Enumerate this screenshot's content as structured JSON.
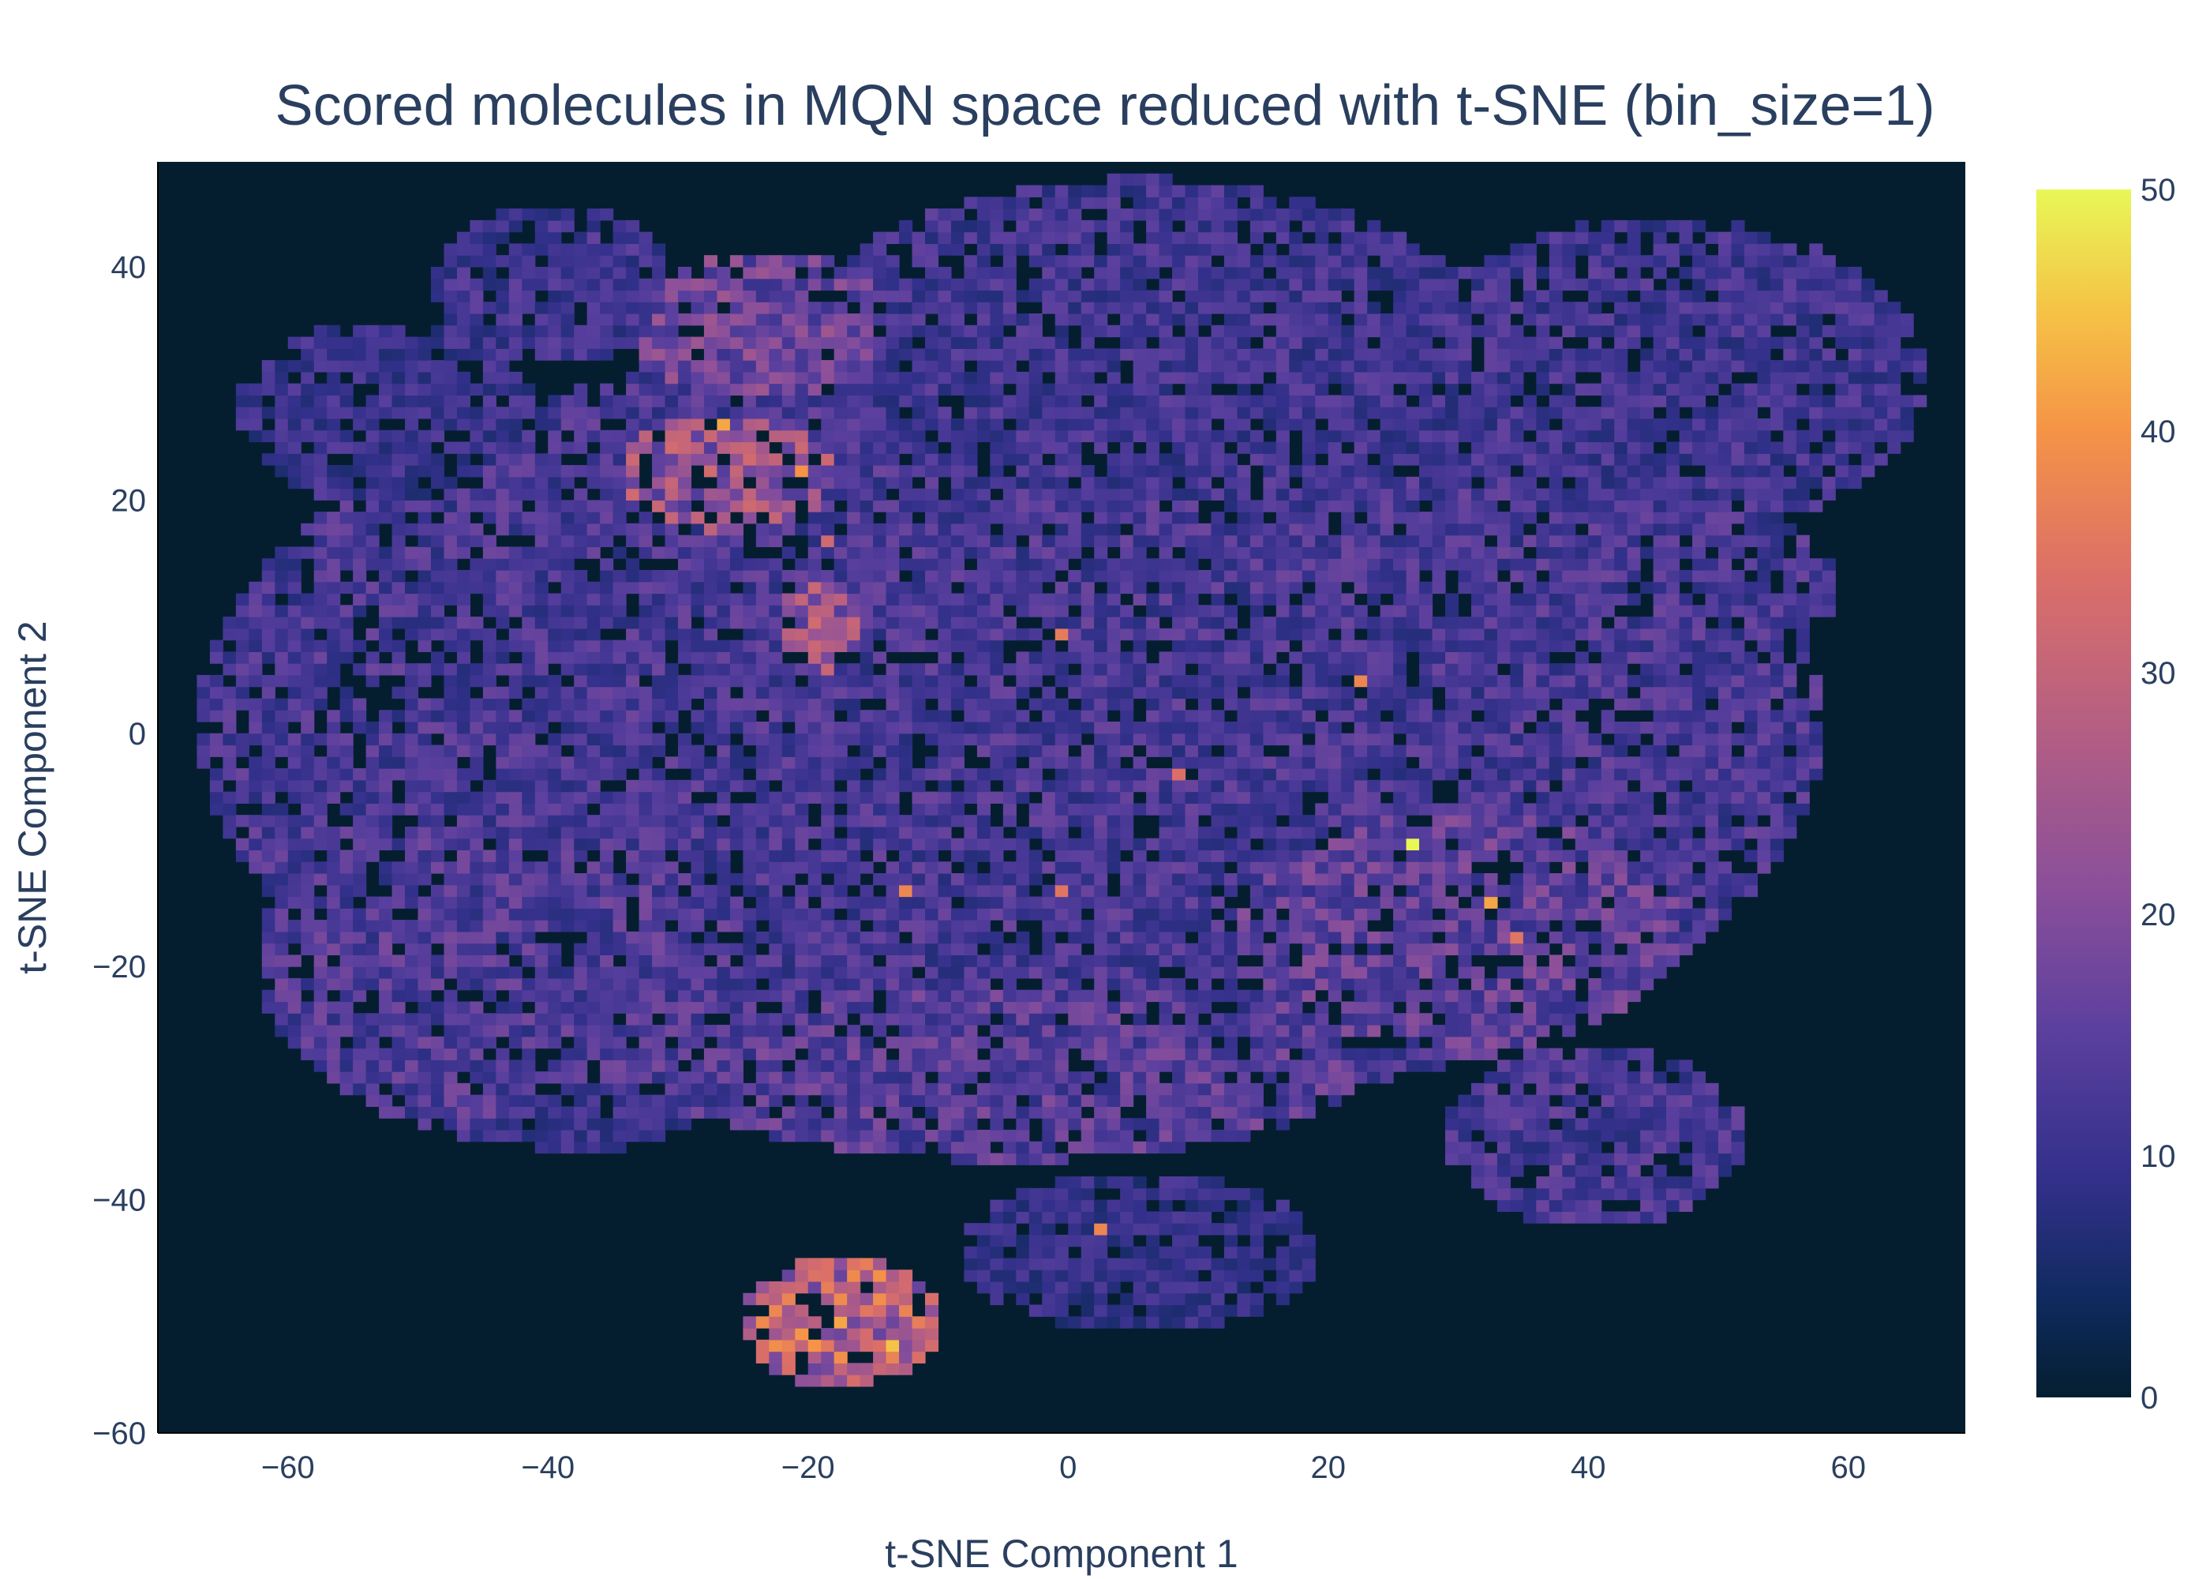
{
  "chart_data": {
    "type": "heatmap",
    "title": "Scored molecules in MQN space reduced with t-SNE (bin_size=1)",
    "xlabel": "t-SNE Component 1",
    "ylabel": "t-SNE Component 2",
    "xlim": [
      -70,
      69
    ],
    "ylim": [
      -60,
      49
    ],
    "xticks": [
      -60,
      -40,
      -20,
      0,
      20,
      40,
      60
    ],
    "yticks": [
      -60,
      -40,
      -20,
      0,
      20,
      40
    ],
    "xtick_labels": [
      "−60",
      "−40",
      "−20",
      "0",
      "20",
      "40",
      "60"
    ],
    "ytick_labels": [
      "−60",
      "−40",
      "−20",
      "0",
      "20",
      "40"
    ],
    "bin_size": 1,
    "colorscale": "plasma-like",
    "background": "#041e30",
    "colorbar": {
      "range": [
        0,
        50
      ],
      "ticks": [
        0,
        10,
        20,
        30,
        40,
        50
      ],
      "tick_labels": [
        "0",
        "10",
        "20",
        "30",
        "40",
        "50"
      ],
      "stops": [
        [
          0.0,
          "#041e30"
        ],
        [
          0.08,
          "#0f2a5e"
        ],
        [
          0.18,
          "#32308a"
        ],
        [
          0.3,
          "#5a3f9e"
        ],
        [
          0.42,
          "#8a4f9a"
        ],
        [
          0.55,
          "#b35e84"
        ],
        [
          0.68,
          "#db6f68"
        ],
        [
          0.8,
          "#f59347"
        ],
        [
          0.9,
          "#f5c346"
        ],
        [
          1.0,
          "#e8f756"
        ]
      ]
    },
    "clusters": [
      {
        "cx": -5,
        "cy": 0,
        "rx": 55,
        "ry": 30,
        "density": 13
      },
      {
        "cx": -45,
        "cy": 5,
        "rx": 15,
        "ry": 13,
        "density": 13
      },
      {
        "cx": -53,
        "cy": 27,
        "rx": 10,
        "ry": 7,
        "density": 11
      },
      {
        "cx": -40,
        "cy": 38,
        "rx": 8,
        "ry": 6,
        "density": 12
      },
      {
        "cx": -23,
        "cy": 34,
        "rx": 10,
        "ry": 6,
        "density": 18
      },
      {
        "cx": -26,
        "cy": 21,
        "rx": 10,
        "ry": 6,
        "density": 24
      },
      {
        "cx": -19,
        "cy": 8,
        "rx": 9,
        "ry": 10,
        "density": 24
      },
      {
        "cx": 5,
        "cy": 30,
        "rx": 25,
        "ry": 15,
        "density": 12
      },
      {
        "cx": 45,
        "cy": 30,
        "rx": 18,
        "ry": 12,
        "density": 12
      },
      {
        "cx": 30,
        "cy": 12,
        "rx": 25,
        "ry": 10,
        "density": 13
      },
      {
        "cx": 25,
        "cy": -15,
        "rx": 20,
        "ry": 12,
        "density": 16
      },
      {
        "cx": -40,
        "cy": -20,
        "rx": 20,
        "ry": 14,
        "density": 14
      },
      {
        "cx": -5,
        "cy": -28,
        "rx": 25,
        "ry": 8,
        "density": 15
      },
      {
        "cx": 40,
        "cy": -35,
        "rx": 10,
        "ry": 7,
        "density": 13
      },
      {
        "cx": -38,
        "cy": -33,
        "rx": 7,
        "ry": 3,
        "density": 11
      },
      {
        "cx": 5,
        "cy": -45,
        "rx": 12,
        "ry": 6,
        "density": 10
      },
      {
        "cx": -18,
        "cy": -51,
        "rx": 7,
        "ry": 5,
        "density": 30
      }
    ],
    "hotspots": [
      {
        "x": 26,
        "y": -10,
        "value": 50
      },
      {
        "x": 32,
        "y": -15,
        "value": 42
      },
      {
        "x": -18,
        "y": -51,
        "value": 42
      },
      {
        "x": -14,
        "y": -53,
        "value": 45
      },
      {
        "x": -27,
        "y": 26,
        "value": 42
      },
      {
        "x": -21,
        "y": 22,
        "value": 40
      },
      {
        "x": 2,
        "y": -43,
        "value": 38
      },
      {
        "x": -13,
        "y": -14,
        "value": 38
      },
      {
        "x": -1,
        "y": -14,
        "value": 35
      },
      {
        "x": -1,
        "y": 8,
        "value": 36
      },
      {
        "x": 22,
        "y": 4,
        "value": 38
      },
      {
        "x": 8,
        "y": -4,
        "value": 34
      },
      {
        "x": -19,
        "y": 16,
        "value": 32
      },
      {
        "x": 34,
        "y": -18,
        "value": 35
      }
    ]
  }
}
